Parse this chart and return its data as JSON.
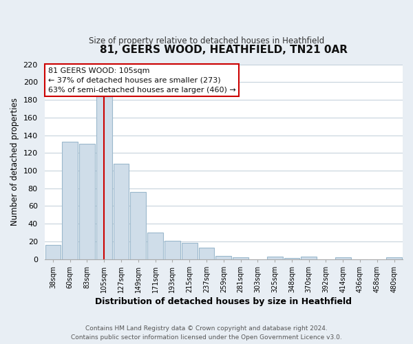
{
  "title": "81, GEERS WOOD, HEATHFIELD, TN21 0AR",
  "subtitle": "Size of property relative to detached houses in Heathfield",
  "xlabel": "Distribution of detached houses by size in Heathfield",
  "ylabel": "Number of detached properties",
  "bar_labels": [
    "38sqm",
    "60sqm",
    "83sqm",
    "105sqm",
    "127sqm",
    "149sqm",
    "171sqm",
    "193sqm",
    "215sqm",
    "237sqm",
    "259sqm",
    "281sqm",
    "303sqm",
    "325sqm",
    "348sqm",
    "370sqm",
    "392sqm",
    "414sqm",
    "436sqm",
    "458sqm",
    "480sqm"
  ],
  "bar_heights": [
    16,
    133,
    130,
    184,
    108,
    76,
    30,
    21,
    18,
    13,
    4,
    2,
    0,
    3,
    1,
    3,
    0,
    2,
    0,
    0,
    2
  ],
  "bar_color": "#cfdde9",
  "bar_edge_color": "#9ab8cc",
  "vline_x_index": 3,
  "vline_color": "#cc0000",
  "ylim": [
    0,
    220
  ],
  "yticks": [
    0,
    20,
    40,
    60,
    80,
    100,
    120,
    140,
    160,
    180,
    200,
    220
  ],
  "annotation_title": "81 GEERS WOOD: 105sqm",
  "annotation_line1": "← 37% of detached houses are smaller (273)",
  "annotation_line2": "63% of semi-detached houses are larger (460) →",
  "footer_line1": "Contains HM Land Registry data © Crown copyright and database right 2024.",
  "footer_line2": "Contains public sector information licensed under the Open Government Licence v3.0.",
  "background_color": "#e8eef4",
  "plot_bg_color": "#ffffff",
  "grid_color": "#c0cdd8"
}
